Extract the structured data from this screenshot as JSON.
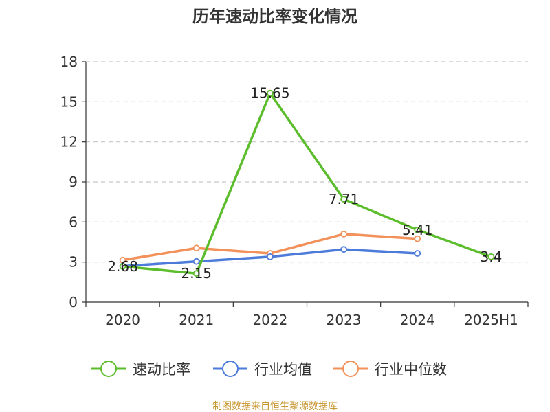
{
  "chart_data": {
    "type": "line",
    "title": "历年速动比率变化情况",
    "categories": [
      "2020",
      "2021",
      "2022",
      "2023",
      "2024",
      "2025H1"
    ],
    "ylim": [
      0,
      18
    ],
    "yticks": [
      "0",
      "3",
      "6",
      "9",
      "12",
      "15",
      "18"
    ],
    "grid": true,
    "legend_position": "bottom",
    "series": [
      {
        "name": "速动比率",
        "color": "#5cbd2c",
        "values": [
          2.68,
          2.15,
          15.65,
          7.71,
          5.41,
          3.4
        ],
        "labels": [
          "2.68",
          "2.15",
          "15.65",
          "7.71",
          "5.41",
          "3.4"
        ]
      },
      {
        "name": "行业均值",
        "color": "#4c7bd9",
        "values": [
          2.7,
          3.05,
          3.4,
          3.95,
          3.65,
          null
        ]
      },
      {
        "name": "行业中位数",
        "color": "#f2915a",
        "values": [
          3.15,
          4.05,
          3.65,
          5.1,
          4.75,
          null
        ]
      }
    ]
  },
  "source_text": "制图数据来自恒生聚源数据库"
}
